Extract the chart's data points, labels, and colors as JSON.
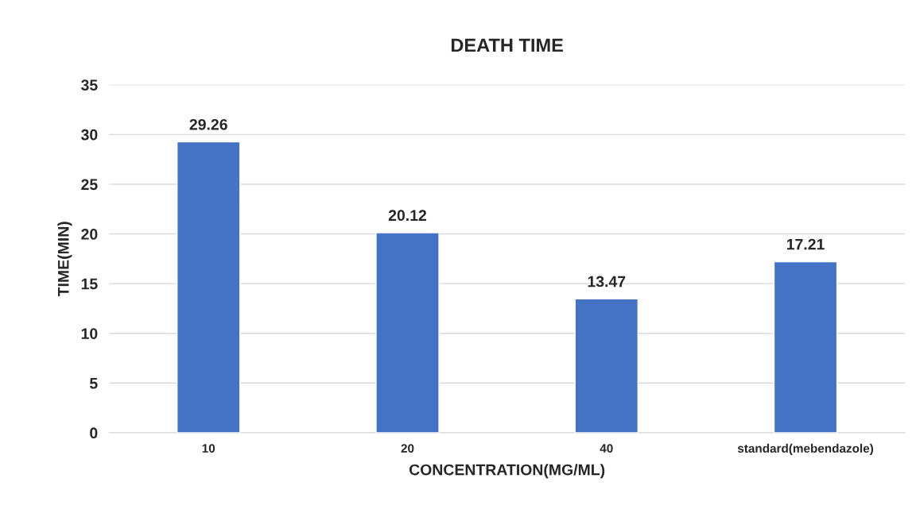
{
  "chart_data": {
    "type": "bar",
    "title": "DEATH TIME",
    "xlabel": "CONCENTRATION(MG/ML)",
    "ylabel": "TIME(MIN)",
    "categories": [
      "10",
      "20",
      "40",
      "standard(mebendazole)"
    ],
    "values": [
      29.26,
      20.12,
      13.47,
      17.21
    ],
    "color": "#4472c4",
    "ylim": [
      0,
      35
    ],
    "yticks": [
      0,
      5,
      10,
      15,
      20,
      25,
      30,
      35
    ],
    "grid": "y",
    "data_labels": true
  }
}
